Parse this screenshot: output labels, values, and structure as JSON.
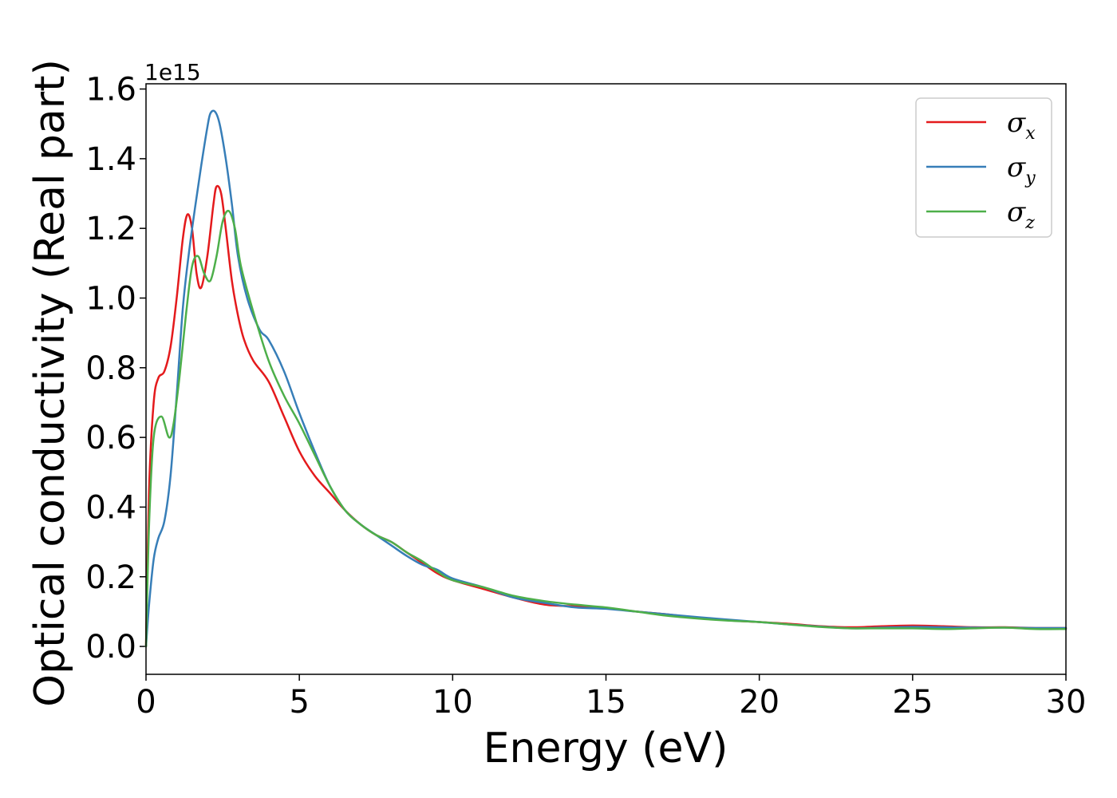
{
  "chart_data": {
    "type": "line",
    "xlabel": "Energy (eV)",
    "ylabel": "Optical conductivity (Real part)",
    "y_offset_label": "1e15",
    "xlim": [
      0,
      30
    ],
    "ylim": [
      -0.08,
      1.615
    ],
    "x_ticks": [
      0,
      5,
      10,
      15,
      20,
      25,
      30
    ],
    "x_tick_labels": [
      "0",
      "5",
      "10",
      "15",
      "20",
      "25",
      "30"
    ],
    "y_ticks": [
      0.0,
      0.2,
      0.4,
      0.6,
      0.8,
      1.0,
      1.2,
      1.4,
      1.6
    ],
    "y_tick_labels": [
      "0.0",
      "0.2",
      "0.4",
      "0.6",
      "0.8",
      "1.0",
      "1.2",
      "1.4",
      "1.6"
    ],
    "grid": false,
    "legend_position": "top-right",
    "series": [
      {
        "name": "σx",
        "symbol": "σ",
        "subscript": "x",
        "color": "#e41a1c",
        "x": [
          0,
          0.1,
          0.25,
          0.4,
          0.6,
          0.8,
          1.0,
          1.2,
          1.35,
          1.5,
          1.65,
          1.8,
          2.0,
          2.2,
          2.3,
          2.45,
          2.6,
          2.8,
          3.0,
          3.2,
          3.5,
          4.0,
          4.5,
          5.0,
          5.5,
          6.0,
          6.5,
          7.0,
          7.5,
          8.0,
          8.5,
          9.0,
          9.5,
          10.0,
          11.0,
          12.0,
          13.0,
          14.0,
          15.0,
          16.0,
          17.0,
          18.0,
          19.0,
          20.0,
          21.0,
          22.0,
          23.0,
          24.0,
          25.0,
          26.0,
          27.0,
          28.0,
          29.0,
          30.0
        ],
        "y": [
          0.0,
          0.45,
          0.7,
          0.77,
          0.79,
          0.86,
          1.0,
          1.17,
          1.24,
          1.2,
          1.07,
          1.03,
          1.12,
          1.27,
          1.32,
          1.3,
          1.2,
          1.05,
          0.95,
          0.88,
          0.82,
          0.76,
          0.66,
          0.56,
          0.49,
          0.44,
          0.39,
          0.35,
          0.32,
          0.3,
          0.27,
          0.24,
          0.21,
          0.19,
          0.165,
          0.14,
          0.12,
          0.115,
          0.11,
          0.1,
          0.092,
          0.082,
          0.075,
          0.07,
          0.065,
          0.058,
          0.055,
          0.058,
          0.06,
          0.058,
          0.055,
          0.055,
          0.053,
          0.053
        ]
      },
      {
        "name": "σy",
        "symbol": "σ",
        "subscript": "y",
        "color": "#377eb8",
        "x": [
          0,
          0.1,
          0.25,
          0.4,
          0.6,
          0.8,
          1.0,
          1.2,
          1.4,
          1.6,
          1.8,
          2.0,
          2.1,
          2.25,
          2.4,
          2.6,
          2.8,
          3.0,
          3.3,
          3.7,
          4.0,
          4.5,
          5.0,
          5.5,
          6.0,
          6.5,
          7.0,
          7.5,
          8.0,
          8.5,
          9.0,
          9.5,
          10.0,
          11.0,
          12.0,
          13.0,
          14.0,
          15.0,
          16.0,
          17.0,
          18.0,
          19.0,
          20.0,
          21.0,
          22.0,
          23.0,
          24.0,
          25.0,
          26.0,
          27.0,
          28.0,
          29.0,
          30.0
        ],
        "y": [
          0.0,
          0.12,
          0.25,
          0.31,
          0.36,
          0.49,
          0.72,
          0.97,
          1.13,
          1.26,
          1.38,
          1.49,
          1.53,
          1.535,
          1.5,
          1.4,
          1.27,
          1.12,
          1.0,
          0.91,
          0.88,
          0.79,
          0.67,
          0.56,
          0.46,
          0.39,
          0.35,
          0.32,
          0.29,
          0.26,
          0.235,
          0.22,
          0.195,
          0.17,
          0.14,
          0.125,
          0.112,
          0.108,
          0.1,
          0.092,
          0.084,
          0.077,
          0.07,
          0.063,
          0.057,
          0.052,
          0.054,
          0.056,
          0.055,
          0.054,
          0.054,
          0.053,
          0.053
        ]
      },
      {
        "name": "σz",
        "symbol": "σ",
        "subscript": "z",
        "color": "#4daf4a",
        "x": [
          0,
          0.1,
          0.25,
          0.5,
          0.75,
          0.9,
          1.1,
          1.3,
          1.5,
          1.7,
          1.9,
          2.1,
          2.3,
          2.5,
          2.7,
          2.9,
          3.1,
          3.5,
          4.0,
          4.5,
          5.0,
          5.5,
          6.0,
          6.5,
          7.0,
          7.5,
          8.0,
          8.5,
          9.0,
          9.5,
          10.0,
          11.0,
          12.0,
          13.0,
          14.0,
          15.0,
          16.0,
          17.0,
          18.0,
          19.0,
          20.0,
          21.0,
          22.0,
          23.0,
          24.0,
          25.0,
          26.0,
          27.0,
          28.0,
          29.0,
          30.0
        ],
        "y": [
          0.0,
          0.35,
          0.6,
          0.66,
          0.6,
          0.64,
          0.78,
          0.95,
          1.09,
          1.12,
          1.07,
          1.05,
          1.12,
          1.22,
          1.25,
          1.2,
          1.09,
          0.96,
          0.82,
          0.72,
          0.64,
          0.55,
          0.46,
          0.39,
          0.35,
          0.32,
          0.3,
          0.27,
          0.245,
          0.215,
          0.19,
          0.17,
          0.145,
          0.13,
          0.12,
          0.112,
          0.1,
          0.088,
          0.08,
          0.074,
          0.07,
          0.063,
          0.056,
          0.052,
          0.052,
          0.052,
          0.05,
          0.052,
          0.054,
          0.05,
          0.05
        ]
      }
    ]
  }
}
